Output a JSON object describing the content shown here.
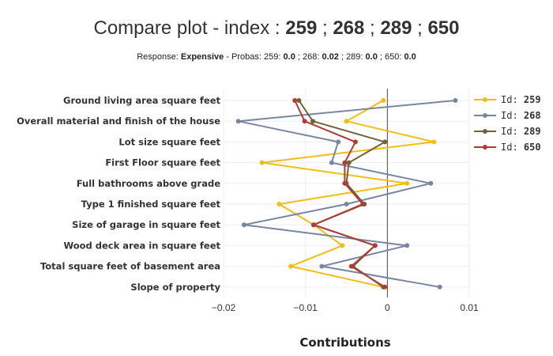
{
  "title": {
    "prefix": "Compare plot - index : ",
    "ids": [
      "259",
      "268",
      "289",
      "650"
    ],
    "sep": " ; "
  },
  "subtitle": {
    "response_label": "Response: ",
    "response_value": "Expensive",
    "probas_label": " - Probas: ",
    "probas": [
      {
        "id": "259",
        "value": "0.0"
      },
      {
        "id": "268",
        "value": "0.02"
      },
      {
        "id": "289",
        "value": "0.0"
      },
      {
        "id": "650",
        "value": "0.0"
      }
    ]
  },
  "chart_data": {
    "type": "line",
    "xlabel": "Contributions",
    "xlim": [
      -0.02,
      0.01
    ],
    "xticks": [
      -0.02,
      -0.01,
      0,
      0.01
    ],
    "xtick_labels": [
      "−0.02",
      "−0.01",
      "0",
      "0.01"
    ],
    "grid": true,
    "legend_position": "top-right",
    "categories": [
      "Ground living area square feet",
      "Overall material and finish of the house",
      "Lot size square feet",
      "First Floor square feet",
      "Full bathrooms above grade",
      "Type 1 finished square feet",
      "Size of garage in square feet",
      "Wood deck area in square feet",
      "Total square feet of basement area",
      "Slope of property"
    ],
    "series": [
      {
        "name": "259",
        "color": "#f2bd14",
        "values": [
          -0.0005,
          -0.005,
          0.0057,
          -0.0153,
          0.0024,
          -0.0132,
          -0.009,
          -0.0055,
          -0.0118,
          -0.0005
        ]
      },
      {
        "name": "268",
        "color": "#7886a3",
        "values": [
          0.0083,
          -0.0182,
          -0.006,
          -0.0068,
          0.0053,
          -0.005,
          -0.0175,
          0.0024,
          -0.008,
          0.0064
        ]
      },
      {
        "name": "289",
        "color": "#6e6438",
        "values": [
          -0.0108,
          -0.0091,
          -0.0003,
          -0.0047,
          -0.005,
          -0.0028,
          -0.009,
          -0.0015,
          -0.0042,
          -0.0005
        ]
      },
      {
        "name": "650",
        "color": "#b23a34",
        "values": [
          -0.0113,
          -0.0101,
          -0.0039,
          -0.0052,
          -0.0052,
          -0.003,
          -0.009,
          -0.0015,
          -0.0044,
          -0.0003
        ]
      }
    ],
    "legend_prefix": "Id: "
  }
}
